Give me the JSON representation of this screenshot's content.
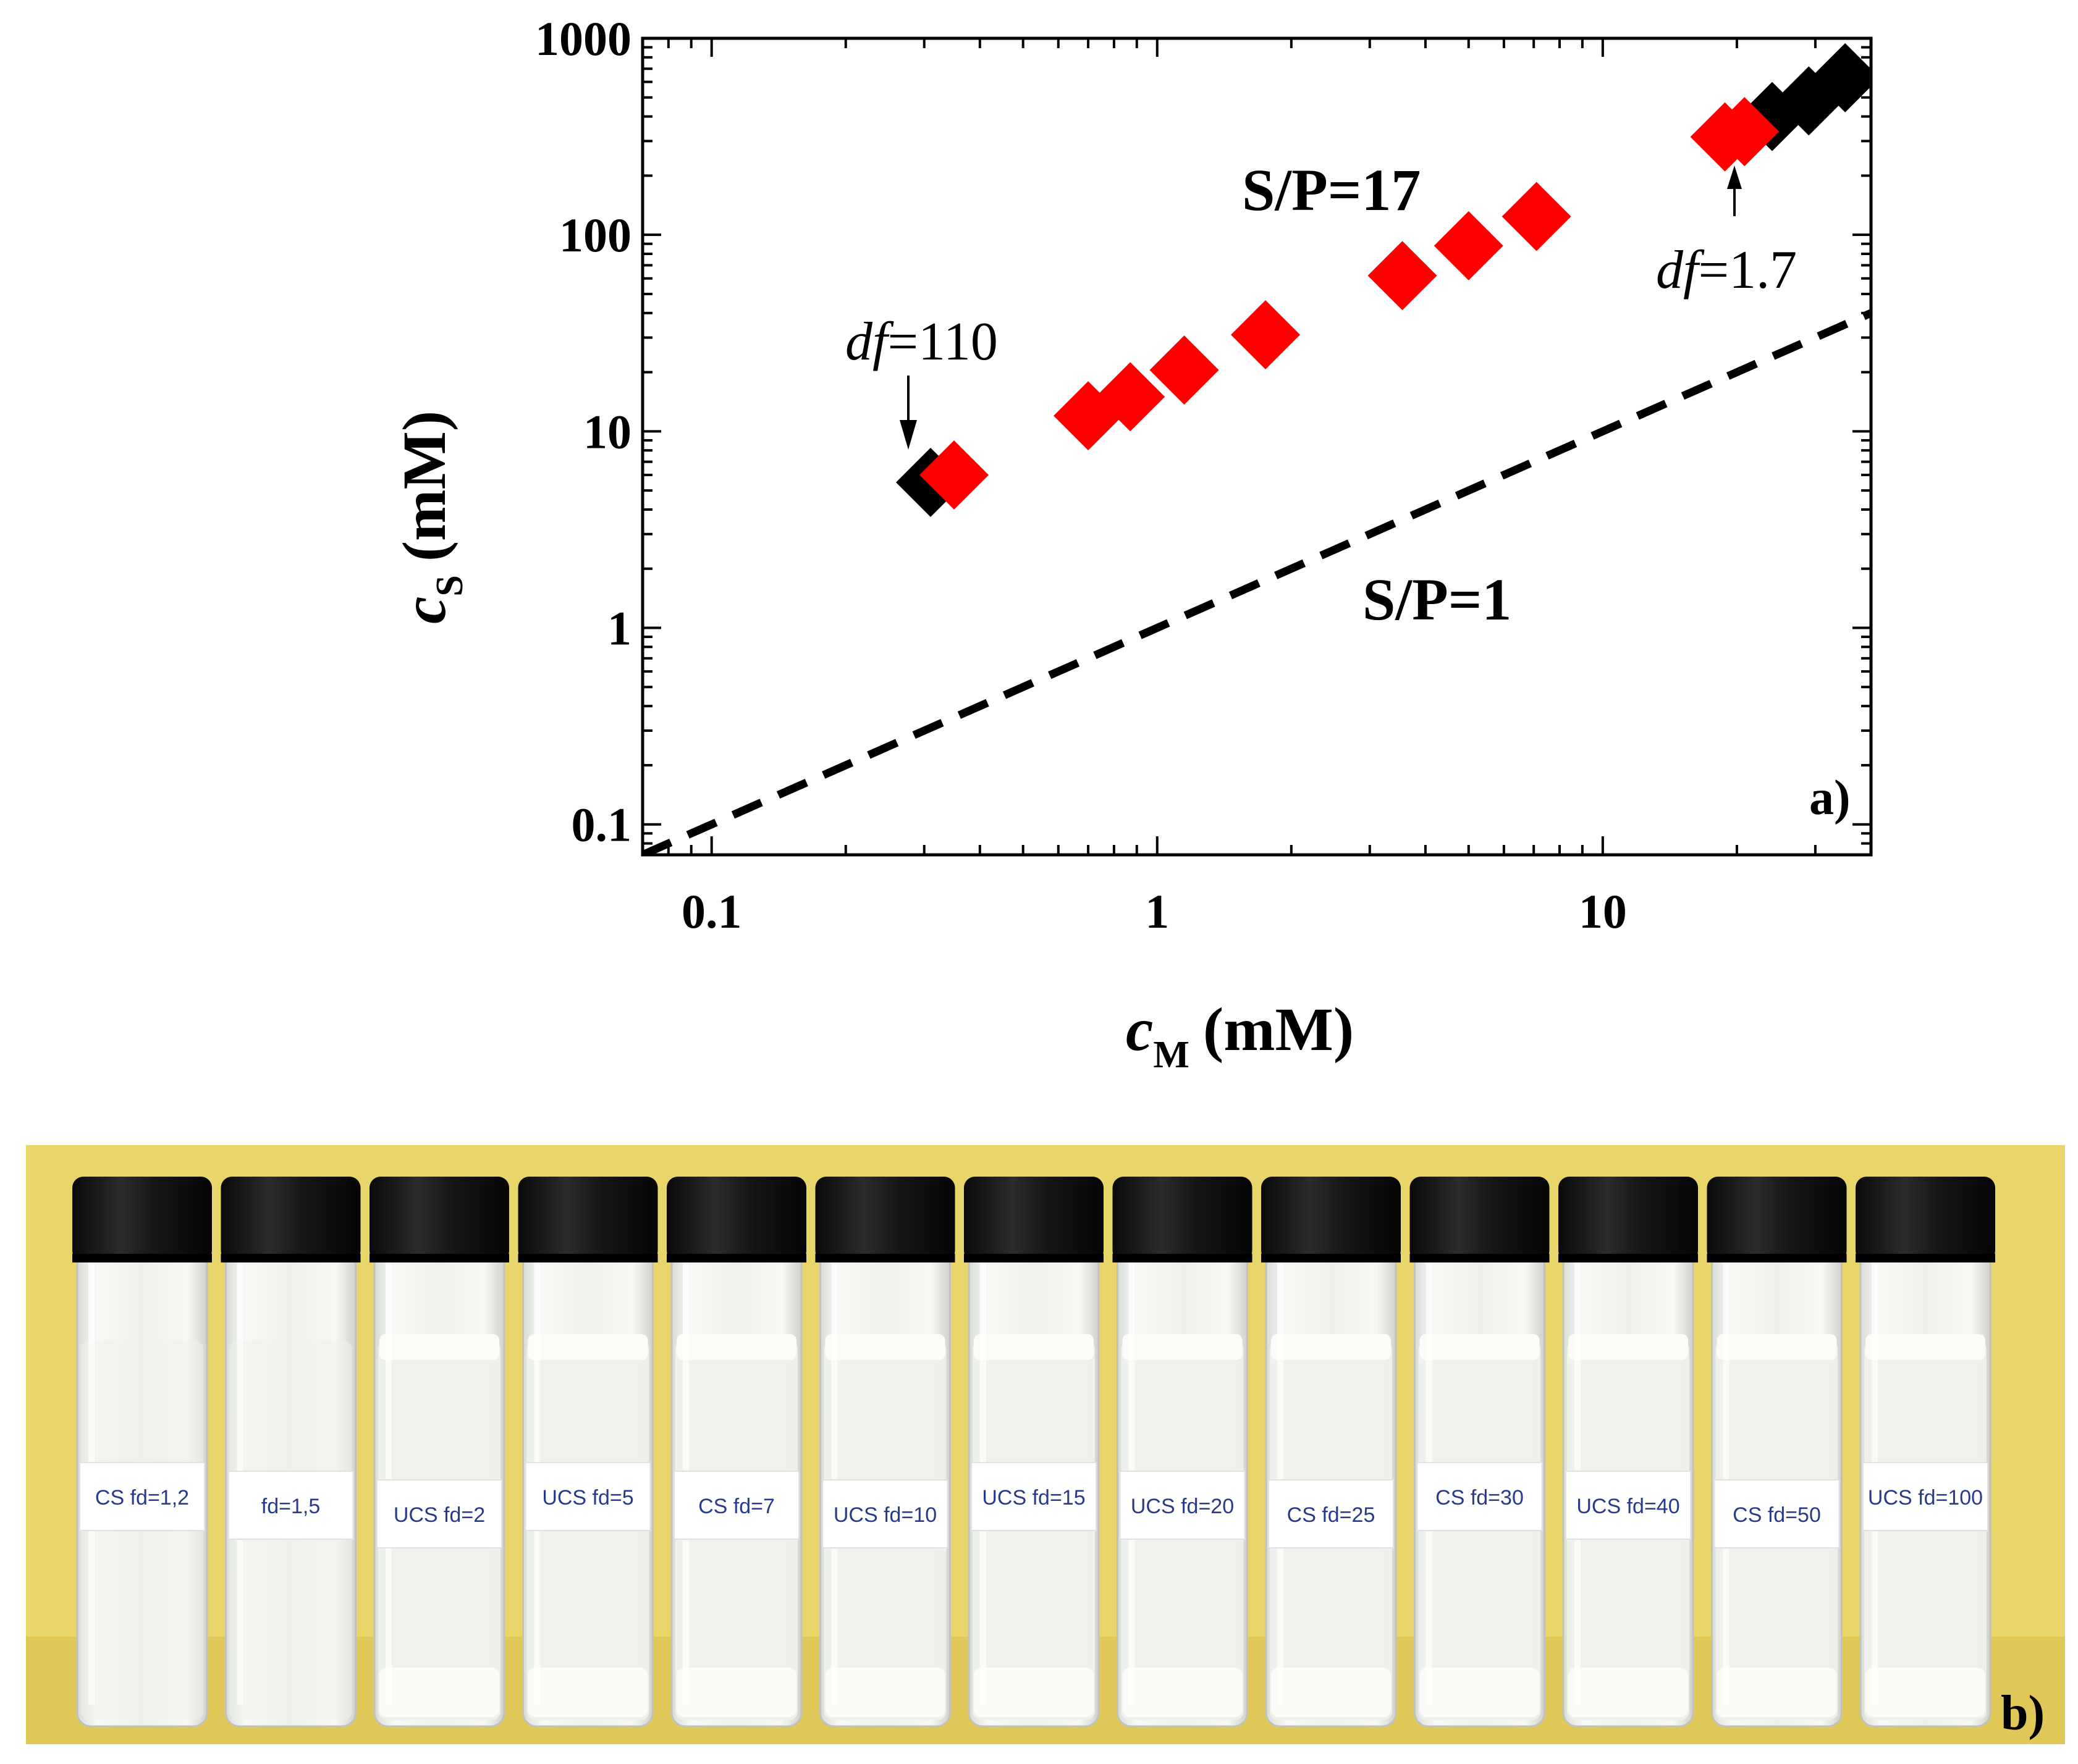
{
  "chart_data": {
    "type": "scatter",
    "xscale": "log",
    "yscale": "log",
    "xlim": [
      0.07,
      40
    ],
    "ylim": [
      0.07,
      1000
    ],
    "xlabel": {
      "main": "c",
      "sub": "M",
      "unit": "(mM)"
    },
    "ylabel": {
      "main": "c",
      "sub": "S",
      "unit": "(mM)"
    },
    "x_ticks": [
      {
        "value": 0.1,
        "label": "0.1"
      },
      {
        "value": 1,
        "label": "1"
      },
      {
        "value": 10,
        "label": "10"
      }
    ],
    "y_ticks": [
      {
        "value": 0.1,
        "label": "0.1"
      },
      {
        "value": 1,
        "label": "1"
      },
      {
        "value": 10,
        "label": "10"
      },
      {
        "value": 100,
        "label": "100"
      },
      {
        "value": 1000,
        "label": "1000"
      }
    ],
    "series": [
      {
        "name": "black",
        "color": "#000000",
        "marker": "diamond",
        "points": [
          [
            0.31,
            5.5
          ],
          [
            24,
            400
          ],
          [
            29,
            480
          ],
          [
            35,
            630
          ]
        ]
      },
      {
        "name": "red",
        "color": "#ff0000",
        "marker": "diamond",
        "points": [
          [
            0.35,
            6
          ],
          [
            0.7,
            12
          ],
          [
            0.87,
            15
          ],
          [
            1.15,
            20.5
          ],
          [
            1.75,
            31
          ],
          [
            3.55,
            62
          ],
          [
            5.0,
            88
          ],
          [
            7.1,
            124
          ],
          [
            18.8,
            315
          ],
          [
            20.8,
            335
          ]
        ]
      }
    ],
    "reference_line": {
      "label": "S/P=1",
      "slope": 1,
      "style": "dashed",
      "color": "#000000"
    },
    "annotations": {
      "sp17": "S/P=17",
      "sp1": "S/P=1",
      "df_low": {
        "italic": "df",
        "rest": "=110"
      },
      "df_high": {
        "italic": "df",
        "rest": "=1.7"
      }
    },
    "panel_label": "a)"
  },
  "photo": {
    "panel_label": "b)",
    "colors": {
      "background": "#e9d66a",
      "cap": "#151515",
      "liquid": "#eef0ea"
    },
    "vials": [
      {
        "label": "CS fd=1,2",
        "turbid": false
      },
      {
        "label": "fd=1,5",
        "turbid": false
      },
      {
        "label": "UCS fd=2",
        "turbid": true
      },
      {
        "label": "UCS fd=5",
        "turbid": true
      },
      {
        "label": "CS fd=7",
        "turbid": true
      },
      {
        "label": "UCS fd=10",
        "turbid": true
      },
      {
        "label": "UCS fd=15",
        "turbid": true
      },
      {
        "label": "UCS fd=20",
        "turbid": true
      },
      {
        "label": "CS fd=25",
        "turbid": true
      },
      {
        "label": "CS fd=30",
        "turbid": true
      },
      {
        "label": "UCS fd=40",
        "turbid": true
      },
      {
        "label": "CS fd=50",
        "turbid": true
      },
      {
        "label": "UCS fd=100",
        "turbid": true
      }
    ]
  }
}
